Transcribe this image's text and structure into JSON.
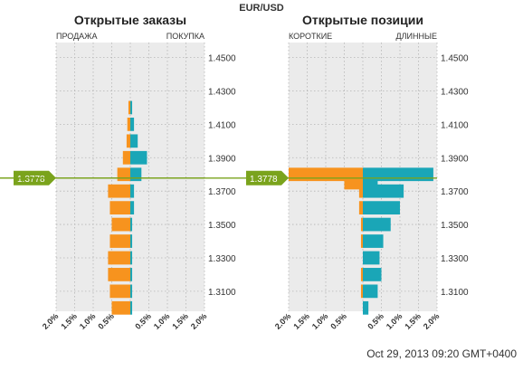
{
  "title": "EUR/USD",
  "timestamp": "Oct 29, 2013 09:20 GMT+0400",
  "current_price_label": "1.3778",
  "colors": {
    "sell": "#f7931e",
    "buy": "#1aa6b7",
    "price_line": "#7aa31c",
    "panel_bg": "#ebebeb",
    "grid": "#b5b5b5"
  },
  "chart_data": [
    {
      "type": "bar",
      "orientation": "horizontal-diverging",
      "title": "Открытые заказы",
      "left_label": "ПРОДАЖА",
      "right_label": "ПОКУПКА",
      "y_ticks": [
        "1.4500",
        "1.4300",
        "1.4100",
        "1.3900",
        "1.3700",
        "1.3500",
        "1.3300",
        "1.3100"
      ],
      "y_tick_values": [
        1.45,
        1.43,
        1.41,
        1.39,
        1.37,
        1.35,
        1.33,
        1.31
      ],
      "x_ticks": [
        "2.0%",
        "1.5%",
        "1.0%",
        "0.5%",
        "",
        "0.5%",
        "1.0%",
        "1.5%",
        "2.0%"
      ],
      "ylim": [
        1.298,
        1.459
      ],
      "xlim": [
        -2.0,
        2.0
      ],
      "current_price": 1.3778,
      "series": [
        {
          "name": "ПРОДАЖА",
          "price": [
            1.3,
            1.31,
            1.32,
            1.33,
            1.34,
            1.35,
            1.36,
            1.37,
            1.38,
            1.39,
            1.4,
            1.41,
            1.42
          ],
          "values": [
            0.5,
            0.55,
            0.6,
            0.6,
            0.55,
            0.5,
            0.55,
            0.6,
            0.35,
            0.2,
            0.1,
            0.08,
            0.05
          ]
        },
        {
          "name": "ПОКУПКА",
          "price": [
            1.3,
            1.31,
            1.32,
            1.33,
            1.34,
            1.35,
            1.36,
            1.37,
            1.38,
            1.39,
            1.4,
            1.41,
            1.42
          ],
          "values": [
            0.05,
            0.05,
            0.05,
            0.05,
            0.05,
            0.05,
            0.1,
            0.1,
            0.3,
            0.45,
            0.2,
            0.1,
            0.05
          ]
        }
      ]
    },
    {
      "type": "bar",
      "orientation": "horizontal-diverging",
      "title": "Открытые позиции",
      "left_label": "КОРОТКИЕ",
      "right_label": "ДЛИННЫЕ",
      "y_ticks": [
        "1.4500",
        "1.4300",
        "1.4100",
        "1.3900",
        "1.3700",
        "1.3500",
        "1.3300",
        "1.3100"
      ],
      "y_tick_values": [
        1.45,
        1.43,
        1.41,
        1.39,
        1.37,
        1.35,
        1.33,
        1.31
      ],
      "x_ticks": [
        "2.0%",
        "1.5%",
        "1.0%",
        "0.5%",
        "",
        "0.5%",
        "1.0%",
        "1.5%",
        "2.0%"
      ],
      "ylim": [
        1.298,
        1.459
      ],
      "xlim": [
        -2.0,
        2.0
      ],
      "current_price": 1.3778,
      "series": [
        {
          "name": "КОРОТКИЕ",
          "price": [
            1.3,
            1.31,
            1.32,
            1.33,
            1.34,
            1.35,
            1.36,
            1.37,
            1.375,
            1.38
          ],
          "values": [
            0.0,
            0.05,
            0.05,
            0.0,
            0.05,
            0.05,
            0.1,
            0.1,
            0.5,
            2.0
          ]
        },
        {
          "name": "ДЛИННЫЕ",
          "price": [
            1.3,
            1.31,
            1.32,
            1.33,
            1.34,
            1.35,
            1.36,
            1.37,
            1.375,
            1.38
          ],
          "values": [
            0.15,
            0.4,
            0.5,
            0.45,
            0.55,
            0.75,
            1.0,
            1.1,
            0.4,
            1.9
          ]
        }
      ]
    }
  ]
}
